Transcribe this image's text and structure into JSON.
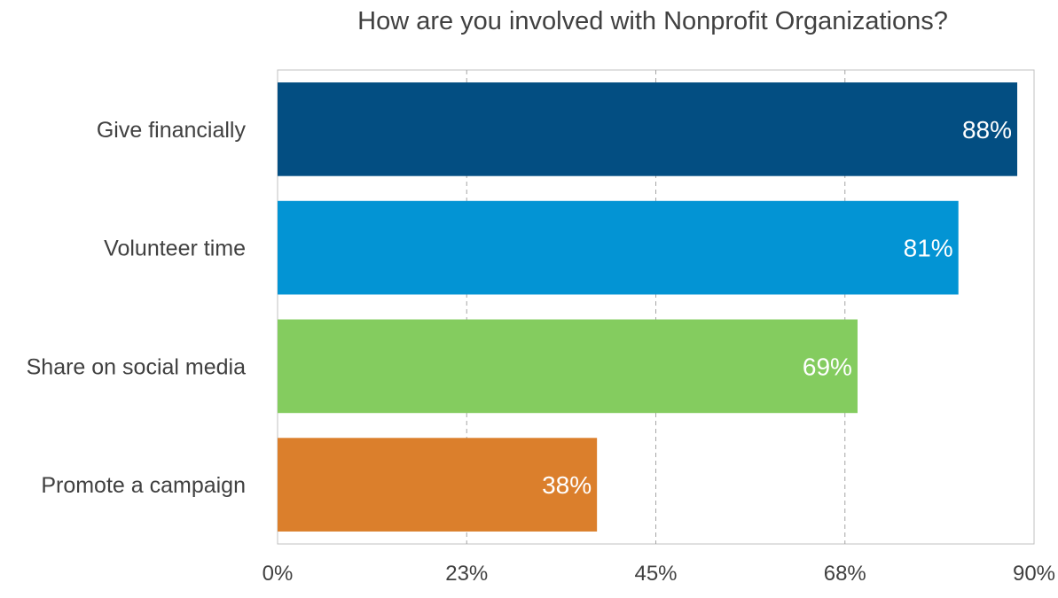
{
  "chart_data": {
    "type": "bar",
    "orientation": "horizontal",
    "title": "How are you involved with Nonprofit Organizations?",
    "categories": [
      "Give financially",
      "Volunteer time",
      "Share on social media",
      "Promote a campaign"
    ],
    "values": [
      88,
      81,
      69,
      38
    ],
    "value_labels": [
      "88%",
      "81%",
      "69%",
      "38%"
    ],
    "colors": [
      "#034e82",
      "#0394d4",
      "#84cc5f",
      "#db7f2c"
    ],
    "xlim": [
      0,
      90
    ],
    "x_ticks": [
      0,
      22.5,
      45,
      67.5,
      90
    ],
    "x_tick_labels": [
      "0%",
      "23%",
      "45%",
      "68%",
      "90%"
    ],
    "grid": true,
    "grid_style": "dashed vertical",
    "legend": "none"
  }
}
